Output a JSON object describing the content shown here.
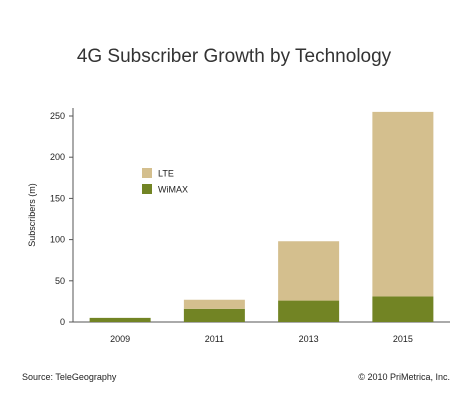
{
  "chart_data": {
    "type": "bar",
    "stacked": true,
    "title": "4G Subscriber Growth by Technology",
    "xlabel": "",
    "ylabel": "Subscribers (m)",
    "categories": [
      "2009",
      "2011",
      "2013",
      "2015"
    ],
    "ylim": [
      0,
      250
    ],
    "yticks": [
      0,
      50,
      100,
      150,
      200,
      250
    ],
    "grid": false,
    "legend_position": "upper-left",
    "series": [
      {
        "name": "WiMAX",
        "color": "#728424",
        "values": [
          5,
          16,
          26,
          31
        ]
      },
      {
        "name": "LTE",
        "color": "#d4bf8e",
        "values": [
          0,
          11,
          72,
          224
        ]
      }
    ]
  },
  "footer": {
    "source": "Source: TeleGeography",
    "copyright": "© 2010 PriMetrica, Inc."
  }
}
